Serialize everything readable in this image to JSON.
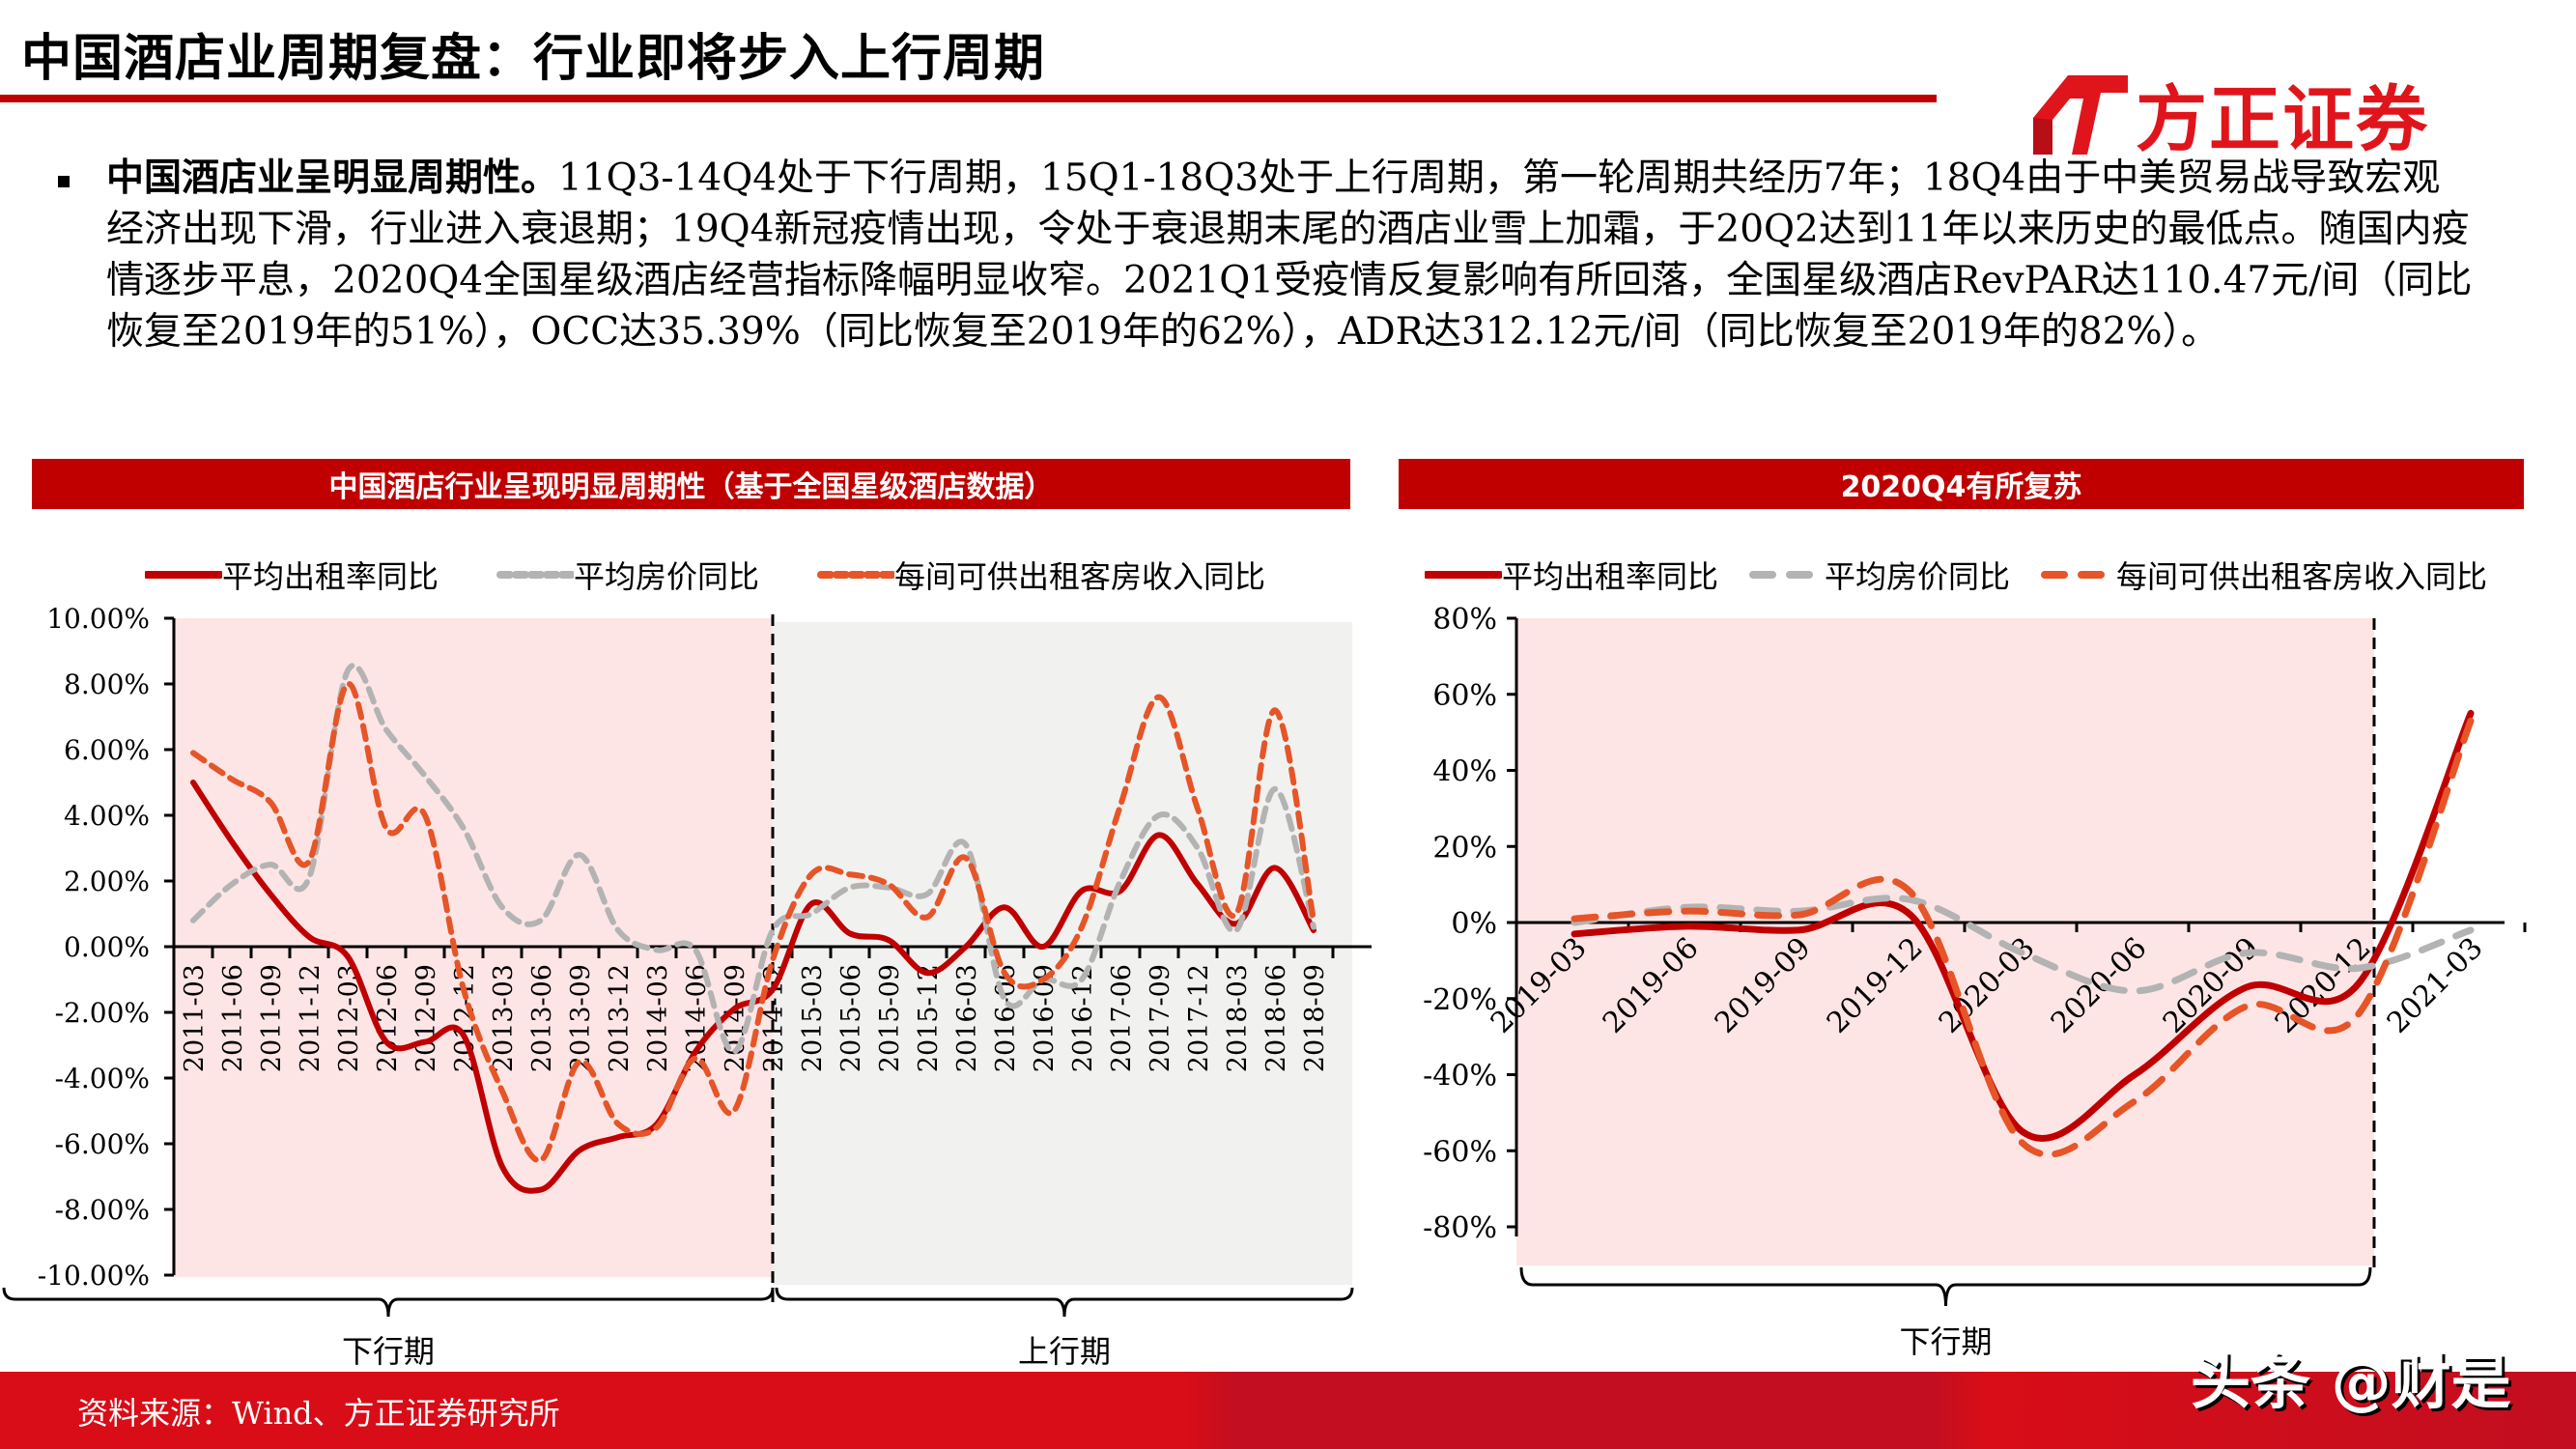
{
  "header": {
    "title": "中国酒店业周期复盘：行业即将步入上行周期",
    "logo_text": "方正证券",
    "logo_icon": "fangzheng-logo-mark-icon",
    "accent_color": "#c00000"
  },
  "summary": {
    "lead": "中国酒店业呈明显周期性。",
    "body": "11Q3-14Q4处于下行周期，15Q1-18Q3处于上行周期，第一轮周期共经历7年；18Q4由于中美贸易战导致宏观经济出现下滑，行业进入衰退期；19Q4新冠疫情出现，令处于衰退期末尾的酒店业雪上加霜，于20Q2达到11年以来历史的最低点。随国内疫情逐步平息，2020Q4全国星级酒店经营指标降幅明显收窄。2021Q1受疫情反复影响有所回落，全国星级酒店RevPAR达110.47元/间（同比恢复至2019年的51%），OCC达35.39%（同比恢复至2019年的62%），ADR达312.12元/间（同比恢复至2019年的82%）。"
  },
  "left_panel": {
    "header": "中国酒店行业呈现明显周期性（基于全国星级酒店数据）",
    "legend": [
      "平均出租率同比",
      "平均房价同比",
      "每间可供出租客房收入同比"
    ],
    "period_labels": [
      "下行期",
      "上行期"
    ]
  },
  "right_panel": {
    "header": "2020Q4有所复苏",
    "legend": [
      "平均出租率同比",
      "平均房价同比",
      "每间可供出租客房收入同比"
    ],
    "period_labels": [
      "下行期"
    ]
  },
  "footer": {
    "source": "资料来源：Wind、方正证券研究所",
    "watermark": "头条 @财是"
  },
  "chart_data": [
    {
      "type": "line",
      "title": "中国酒店行业呈现明显周期性（基于全国星级酒店数据）",
      "xlabel": "",
      "ylabel": "",
      "ylim": [
        -10,
        10
      ],
      "yticks": [
        "10.00%",
        "8.00%",
        "6.00%",
        "4.00%",
        "2.00%",
        "0.00%",
        "-2.00%",
        "-4.00%",
        "-6.00%",
        "-8.00%",
        "-10.00%"
      ],
      "legend_position": "top",
      "grid": false,
      "categories": [
        "2011-03",
        "2011-06",
        "2011-09",
        "2011-12",
        "2012-03",
        "2012-06",
        "2012-09",
        "2012-12",
        "2013-03",
        "2013-06",
        "2013-09",
        "2013-12",
        "2014-03",
        "2014-06",
        "2014-09",
        "2014-12",
        "2015-03",
        "2015-06",
        "2015-09",
        "2015-12",
        "2016-03",
        "2016-06",
        "2016-09",
        "2016-12",
        "2017-06",
        "2017-09",
        "2017-12",
        "2018-03",
        "2018-06",
        "2018-09"
      ],
      "series": [
        {
          "name": "平均出租率同比",
          "color": "#c00000",
          "style": "solid",
          "values": [
            5.0,
            3.2,
            1.6,
            0.3,
            -0.3,
            -2.9,
            -2.9,
            -2.7,
            -6.7,
            -7.4,
            -6.2,
            -5.8,
            -5.4,
            -3.2,
            -1.9,
            -1.3,
            1.3,
            0.4,
            0.2,
            -0.8,
            0.0,
            1.2,
            0.0,
            1.7,
            1.7,
            3.4,
            1.9,
            0.7,
            2.4,
            0.5
          ]
        },
        {
          "name": "平均房价同比",
          "color": "#b3b3b3",
          "style": "dashed",
          "values": [
            0.8,
            1.9,
            2.5,
            2.1,
            8.4,
            6.6,
            5.2,
            3.6,
            1.2,
            0.8,
            2.8,
            0.5,
            -0.1,
            -0.1,
            -3.2,
            0.5,
            1.0,
            1.8,
            1.8,
            1.6,
            3.1,
            -1.6,
            -1.0,
            -1.0,
            2.0,
            4.0,
            3.0,
            0.5,
            4.8,
            0.6
          ]
        },
        {
          "name": "每间可供出租客房收入同比",
          "color": "#e65527",
          "style": "dashed",
          "values": [
            5.9,
            5.1,
            4.4,
            2.6,
            8.0,
            3.6,
            4.0,
            -1.3,
            -4.4,
            -6.5,
            -3.5,
            -5.4,
            -5.5,
            -3.4,
            -5.0,
            -0.4,
            2.2,
            2.2,
            1.9,
            0.9,
            2.7,
            -0.8,
            -1.0,
            0.6,
            4.3,
            7.6,
            4.2,
            1.0,
            7.2,
            0.8
          ]
        }
      ],
      "annotations": [
        {
          "text": "下行期",
          "span": [
            "2011-03",
            "2014-12"
          ],
          "shade": "#fde5e6"
        },
        {
          "text": "上行期",
          "span": [
            "2014-12",
            "2018-09"
          ],
          "shade": "#f1f1f0"
        }
      ]
    },
    {
      "type": "line",
      "title": "2020Q4有所复苏",
      "xlabel": "",
      "ylabel": "",
      "ylim": [
        -80,
        80
      ],
      "yticks": [
        "80%",
        "60%",
        "40%",
        "20%",
        "0%",
        "-20%",
        "-40%",
        "-60%",
        "-80%"
      ],
      "legend_position": "top",
      "grid": false,
      "categories": [
        "2019-03",
        "2019-06",
        "2019-09",
        "2019-12",
        "2020-03",
        "2020-06",
        "2020-09",
        "2020-12",
        "2021-03"
      ],
      "series": [
        {
          "name": "平均出租率同比",
          "color": "#c00000",
          "style": "solid",
          "values": [
            -3,
            -1,
            -2,
            2,
            -55,
            -40,
            -17,
            -16,
            55
          ]
        },
        {
          "name": "平均房价同比",
          "color": "#b3b3b3",
          "style": "dashed",
          "values": [
            0,
            4,
            3,
            6,
            -8,
            -18,
            -8,
            -12,
            -2
          ]
        },
        {
          "name": "每间可供出租客房收入同比",
          "color": "#e65527",
          "style": "dashed",
          "values": [
            1,
            3,
            2,
            8,
            -58,
            -47,
            -22,
            -24,
            53
          ]
        }
      ],
      "annotations": [
        {
          "text": "下行期",
          "span": [
            "2019-03",
            "2020-12"
          ],
          "shade": "#fde5e6"
        }
      ]
    }
  ]
}
